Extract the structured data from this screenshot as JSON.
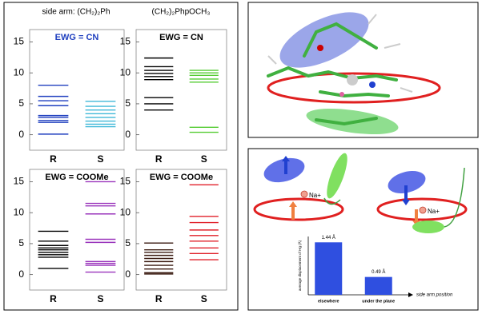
{
  "figure": {
    "column_headers": [
      "side arm: (CH₂)₂Ph",
      "(CH₂)₂PhpOCH₃"
    ]
  },
  "diagram": {
    "ion_labels": [
      "Na+",
      "Na+"
    ]
  },
  "chart_data": [
    {
      "type": "levels",
      "title": "EWG = CN",
      "title_color": "#1f3fbf",
      "ylim": [
        -2.5,
        17
      ],
      "yticks": [
        0,
        5,
        10,
        15
      ],
      "series": [
        {
          "name": "R",
          "color": "#1f3fbf",
          "values": [
            8.0,
            6.2,
            5.5,
            4.7,
            3.1,
            2.8,
            2.3,
            2.0,
            0.1
          ]
        },
        {
          "name": "S",
          "color": "#3fb8d8",
          "values": [
            5.4,
            4.6,
            4.0,
            3.4,
            2.8,
            2.2,
            1.7,
            1.3
          ]
        }
      ]
    },
    {
      "type": "levels",
      "title": "EWG = CN",
      "title_color": "#000000",
      "ylim": [
        -2.5,
        17
      ],
      "yticks": [
        0,
        5,
        10,
        15
      ],
      "series": [
        {
          "name": "R",
          "color": "#000000",
          "values": [
            12.4,
            11.0,
            10.4,
            9.9,
            9.4,
            8.9,
            6.0,
            5.0,
            4.0
          ]
        },
        {
          "name": "S",
          "color": "#55cc33",
          "values": [
            10.4,
            10.0,
            9.6,
            9.0,
            8.5,
            1.2,
            0.4
          ]
        }
      ]
    },
    {
      "type": "levels",
      "title": "EWG = COOMe",
      "title_color": "#000000",
      "ylim": [
        -2.5,
        17
      ],
      "yticks": [
        0,
        5,
        10,
        15
      ],
      "series": [
        {
          "name": "R",
          "color": "#000000",
          "values": [
            7.0,
            5.4,
            4.7,
            4.3,
            4.0,
            3.6,
            3.2,
            2.8,
            1.0
          ]
        },
        {
          "name": "S",
          "color": "#9933bb",
          "values": [
            15.0,
            11.5,
            11.1,
            9.8,
            5.7,
            5.2,
            2.1,
            1.8,
            1.5,
            0.4
          ]
        }
      ]
    },
    {
      "type": "levels",
      "title": "EWG = COOMe",
      "title_color": "#000000",
      "ylim": [
        -2.5,
        17
      ],
      "yticks": [
        0,
        5,
        10,
        15
      ],
      "series": [
        {
          "name": "R",
          "color": "#3a1a10",
          "values": [
            5.1,
            4.0,
            3.6,
            3.1,
            2.6,
            2.1,
            1.5,
            0.9,
            0.3,
            0.1
          ]
        },
        {
          "name": "S",
          "color": "#e0202a",
          "values": [
            14.5,
            9.4,
            8.4,
            7.2,
            6.3,
            5.4,
            4.3,
            3.4,
            2.4
          ]
        }
      ]
    },
    {
      "type": "bar",
      "ylabel": "average displacement of Hg (Å)",
      "xlabel": "side arm position",
      "categories": [
        "elsewhere",
        "under the plane"
      ],
      "values": [
        1.44,
        0.49
      ],
      "value_labels": [
        "1.44 Å",
        "0.49 Å"
      ],
      "color": "#2f4fe0",
      "ylim": [
        0,
        1.6
      ]
    }
  ]
}
